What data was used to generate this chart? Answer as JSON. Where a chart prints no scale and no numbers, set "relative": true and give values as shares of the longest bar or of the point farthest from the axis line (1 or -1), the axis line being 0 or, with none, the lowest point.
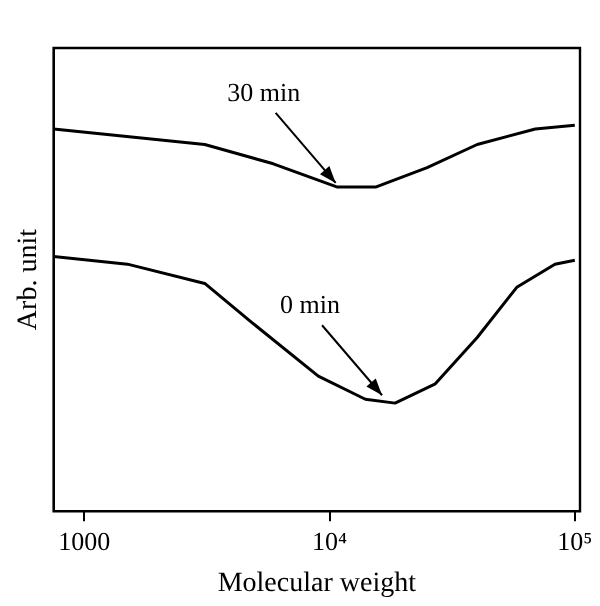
{
  "chart_data": {
    "type": "line",
    "xlabel": "Molecular weight",
    "ylabel": "Arb. unit",
    "relative": true,
    "log": "x",
    "xlim": [
      750,
      105000
    ],
    "xticks": [
      1000,
      {
        "value": 10000,
        "label": "10⁴"
      },
      {
        "value": 100000,
        "label": "10⁵"
      }
    ],
    "series": [
      {
        "color": "#000000",
        "x": [
          750,
          3100,
          5900,
          10700,
          15500,
          25000,
          40000,
          69000,
          100000
        ],
        "values": [
          0.99,
          0.95,
          0.9,
          0.84,
          0.84,
          0.89,
          0.95,
          0.99,
          1
        ]
      },
      {
        "color": "#000000",
        "x": [
          750,
          1500,
          3100,
          4800,
          9000,
          14000,
          18500,
          27000,
          40000,
          58000,
          83000,
          100000
        ],
        "values": [
          0.66,
          0.64,
          0.59,
          0.49,
          0.35,
          0.29,
          0.28,
          0.33,
          0.45,
          0.58,
          0.64,
          0.65
        ]
      }
    ],
    "annotations": [
      {
        "text": "30 min",
        "x": 11000,
        "y": 0.84
      },
      {
        "text": "0 min",
        "x": 17000,
        "y": 0.29
      }
    ],
    "grid": false,
    "legend": false,
    "marker": "none",
    "line_style": "solid"
  }
}
